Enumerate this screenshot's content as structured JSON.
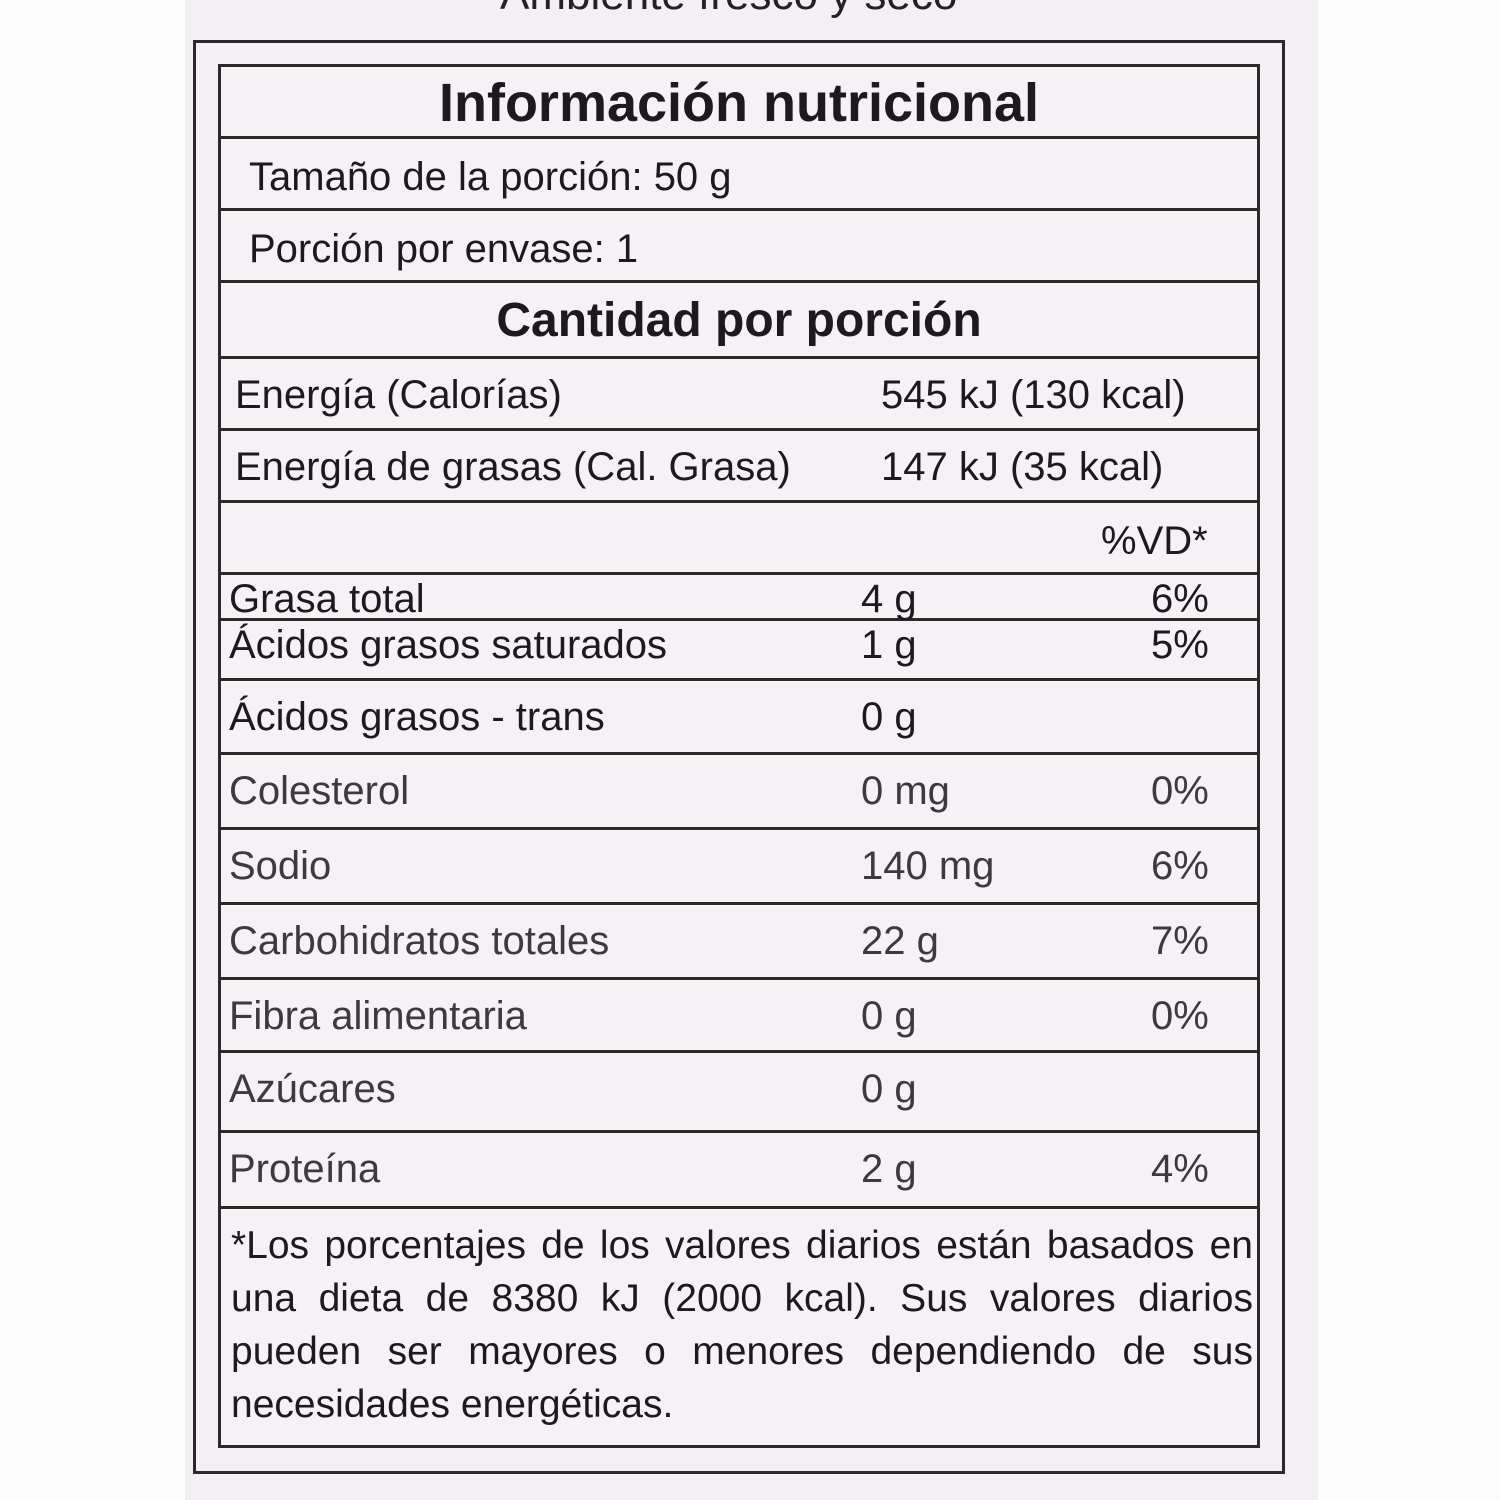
{
  "top_text": "Ambiente fresco y seco",
  "label": {
    "title": "Información nutricional",
    "serving_size": "Tamaño de la porción: 50 g",
    "servings_per_container": "Porción por envase: 1",
    "amount_header": "Cantidad por porción",
    "energy": {
      "label": "Energía (Calorías)",
      "value": "545 kJ (130 kcal)"
    },
    "fat_energy": {
      "label": "Energía de grasas (Cal. Grasa)",
      "value": "147 kJ (35 kcal)"
    },
    "dv_header": "%VD*",
    "nutrients": [
      {
        "name": "Grasa total",
        "amount": "4 g",
        "dv": "6%"
      },
      {
        "name": "Ácidos grasos saturados",
        "amount": "1 g",
        "dv": "5%"
      },
      {
        "name": "Ácidos grasos - trans",
        "amount": "0 g",
        "dv": ""
      },
      {
        "name": "Colesterol",
        "amount": "0 mg",
        "dv": "0%"
      },
      {
        "name": "Sodio",
        "amount": "140 mg",
        "dv": "6%"
      },
      {
        "name": "Carbohidratos totales",
        "amount": "22 g",
        "dv": "7%"
      },
      {
        "name": "Fibra alimentaria",
        "amount": "0 g",
        "dv": "0%"
      },
      {
        "name": "Azúcares",
        "amount": "0 g",
        "dv": ""
      },
      {
        "name": "Proteína",
        "amount": "2 g",
        "dv": "4%"
      }
    ],
    "footnote": "*Los porcentajes de los valores diarios están basados en una dieta de 8380 kJ (2000 kcal). Sus valores diarios pueden ser mayores o menores dependiendo de sus necesidades energéticas."
  }
}
